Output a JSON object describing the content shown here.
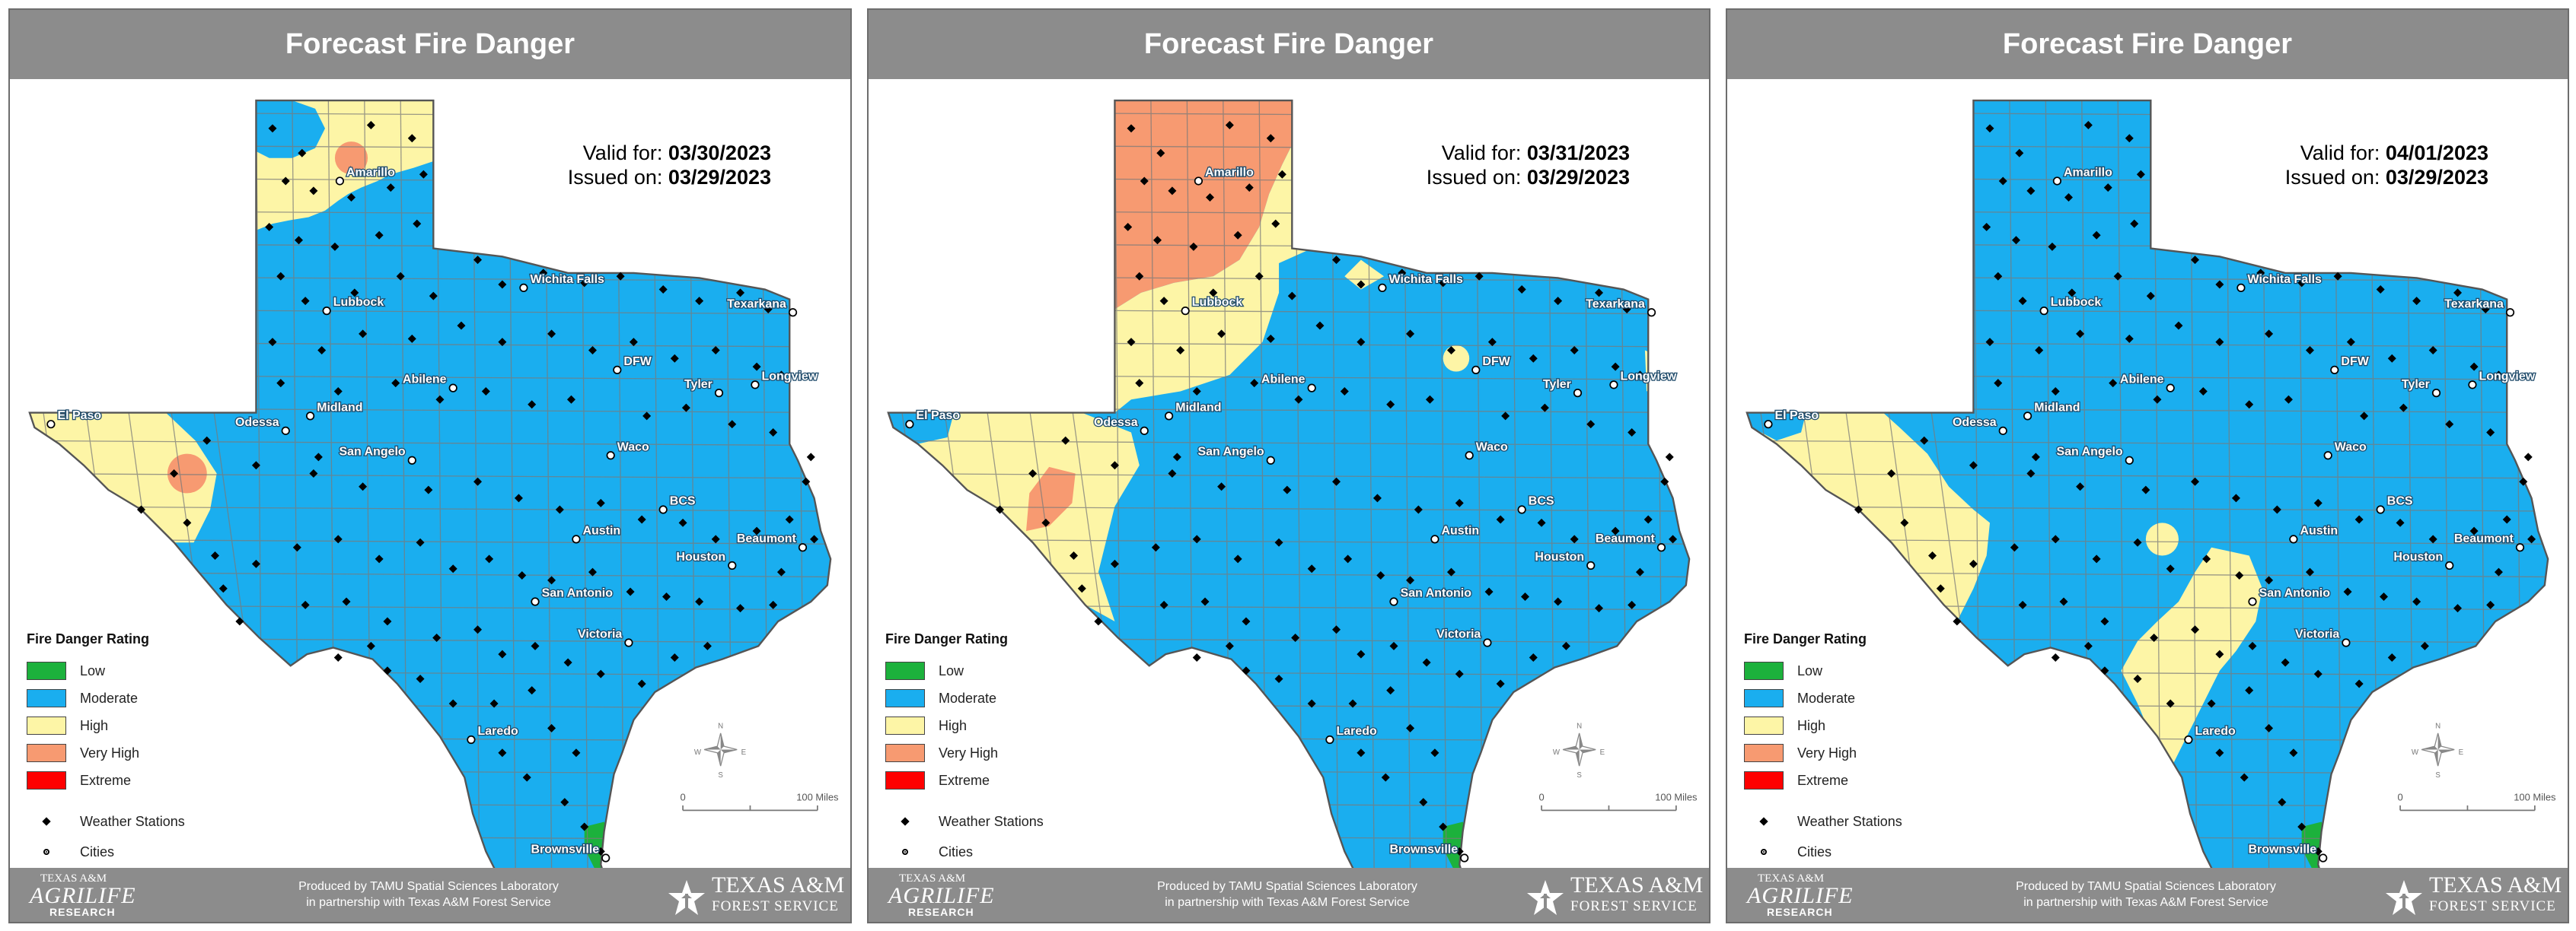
{
  "panels": [
    {
      "header": "Forecast Fire Danger",
      "valid_label": "Valid for:",
      "valid_date": "03/30/2023",
      "issued_label": "Issued on:",
      "issued_date": "03/29/2023"
    },
    {
      "header": "Forecast Fire Danger",
      "valid_label": "Valid for:",
      "valid_date": "03/31/2023",
      "issued_label": "Issued on:",
      "issued_date": "03/29/2023"
    },
    {
      "header": "Forecast Fire Danger",
      "valid_label": "Valid for:",
      "valid_date": "04/01/2023",
      "issued_label": "Issued on:",
      "issued_date": "03/29/2023"
    }
  ],
  "legend": {
    "title": "Fire Danger Rating",
    "items": [
      {
        "label": "Low",
        "color": "#1cb13c"
      },
      {
        "label": "Moderate",
        "color": "#1aaeef"
      },
      {
        "label": "High",
        "color": "#fdf5a6"
      },
      {
        "label": "Very High",
        "color": "#f79a71"
      },
      {
        "label": "Extreme",
        "color": "#fe0000"
      }
    ],
    "symbols": [
      {
        "label": "Weather Stations",
        "icon": "diamond-icon"
      },
      {
        "label": "Cities",
        "icon": "city-dot-icon"
      }
    ]
  },
  "cities": [
    "Amarillo",
    "Lubbock",
    "Wichita Falls",
    "Texarkana",
    "DFW",
    "Tyler",
    "Longview",
    "Abilene",
    "Midland",
    "El Paso",
    "Odessa",
    "San Angelo",
    "Waco",
    "BCS",
    "Austin",
    "Beaumont",
    "Houston",
    "San Antonio",
    "Victoria",
    "Laredo",
    "Brownsville"
  ],
  "scale": {
    "zero": "0",
    "label": "100 Miles"
  },
  "compass": {
    "n": "N",
    "s": "S",
    "e": "E",
    "w": "W"
  },
  "footer": {
    "line1": "Produced by TAMU Spatial Sciences Laboratory",
    "line2": "in partnership with Texas A&M Forest Service",
    "agrilife_top": "TEXAS A&M",
    "agrilife_mid": "AGRILIFE",
    "agrilife_bottom": "RESEARCH",
    "tamu_name": "TEXAS A&M",
    "tamu_service": "FOREST SERVICE"
  }
}
